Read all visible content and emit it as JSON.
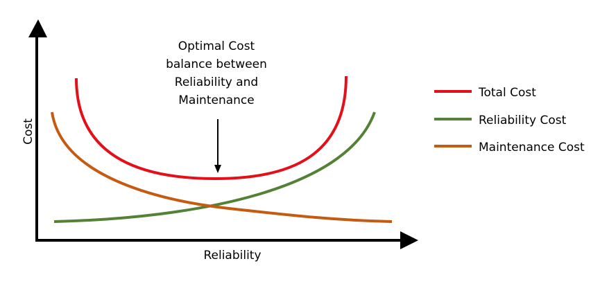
{
  "axes": {
    "x_label": "Reliability",
    "y_label": "Cost"
  },
  "annotation": {
    "lines": [
      "Optimal Cost",
      "balance between",
      "Reliability and",
      "Maintenance"
    ]
  },
  "legend": [
    {
      "label": "Total Cost",
      "color": "#e3101a"
    },
    {
      "label": "Reliability Cost",
      "color": "#538135"
    },
    {
      "label": "Maintenance Cost",
      "color": "#c55a11"
    }
  ]
}
